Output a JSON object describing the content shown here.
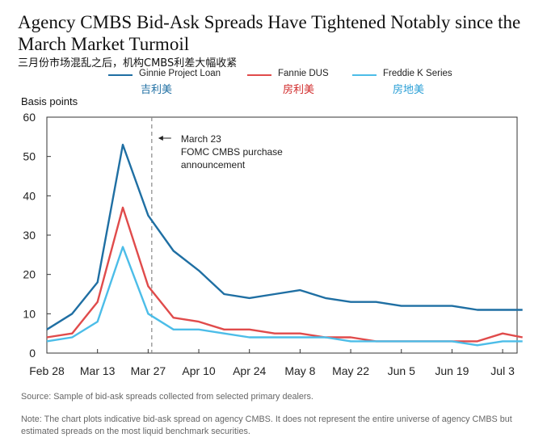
{
  "title": "Agency CMBS Bid-Ask Spreads Have Tightened Notably since the March Market Turmoil",
  "subtitle_cn": "三月份市场混乱之后，机构CMBS利差大幅收紧",
  "legend": [
    {
      "label": "Ginnie Project Loan",
      "label_cn": "吉利美",
      "color": "#1f6fa3"
    },
    {
      "label": "Fannie DUS",
      "label_cn": "房利美",
      "color": "#e04b4b"
    },
    {
      "label": "Freddie K Series",
      "label_cn": "房地美",
      "color": "#4cbde8"
    }
  ],
  "source": "Source: Sample of bid-ask spreads collected from selected primary dealers.",
  "note": "Note: The chart plots indicative bid-ask spread on agency CMBS. It does not represent the entire universe of agency CMBS but estimated spreads on the most liquid benchmark securities.",
  "chart_data": {
    "type": "line",
    "ylabel": "Basis points",
    "ylim": [
      0,
      60
    ],
    "yticks": [
      0,
      10,
      20,
      30,
      40,
      50,
      60
    ],
    "xticks": [
      "Feb 28",
      "Mar 13",
      "Mar 27",
      "Apr 10",
      "Apr 24",
      "May 8",
      "May 22",
      "Jun 5",
      "Jun 19",
      "Jul 3"
    ],
    "x_range_days": [
      0,
      130
    ],
    "annotation": {
      "x_day": 29,
      "lines": [
        "March 23",
        "FOMC CMBS purchase",
        "announcement"
      ]
    },
    "series": [
      {
        "name": "Ginnie Project Loan",
        "color": "#1f6fa3",
        "x": [
          0,
          7,
          14,
          21,
          28,
          35,
          42,
          49,
          56,
          63,
          70,
          77,
          84,
          91,
          98,
          105,
          112,
          119,
          126,
          133
        ],
        "y": [
          6,
          10,
          18,
          53,
          35,
          26,
          21,
          15,
          14,
          15,
          16,
          14,
          13,
          13,
          12,
          12,
          12,
          11,
          11,
          11
        ]
      },
      {
        "name": "Fannie DUS",
        "color": "#e04b4b",
        "x": [
          0,
          7,
          14,
          21,
          28,
          35,
          42,
          49,
          56,
          63,
          70,
          77,
          84,
          91,
          98,
          105,
          112,
          119,
          126,
          133
        ],
        "y": [
          4,
          5,
          13,
          37,
          17,
          9,
          8,
          6,
          6,
          5,
          5,
          4,
          4,
          3,
          3,
          3,
          3,
          3,
          5,
          4
        ]
      },
      {
        "name": "Freddie K Series",
        "color": "#4cbde8",
        "x": [
          0,
          7,
          14,
          21,
          28,
          35,
          42,
          49,
          56,
          63,
          70,
          77,
          84,
          91,
          98,
          105,
          112,
          119,
          126,
          133
        ],
        "y": [
          3,
          4,
          8,
          27,
          10,
          6,
          6,
          5,
          4,
          4,
          4,
          4,
          3,
          3,
          3,
          3,
          3,
          2,
          3,
          3
        ]
      }
    ],
    "grid": false,
    "legend_position": "top"
  }
}
